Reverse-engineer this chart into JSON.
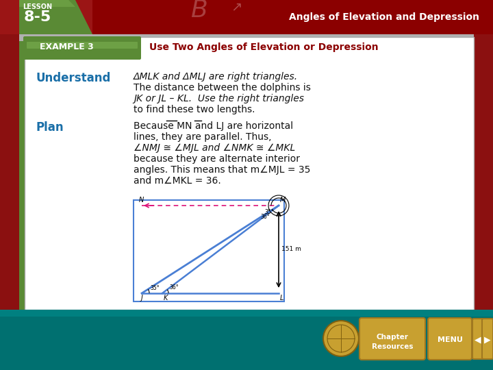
{
  "bg_color": "#c8c8c8",
  "header_bg": "#8B0000",
  "header_text": "Angles of Elevation and Depression",
  "lesson_label": "LESSON",
  "lesson_number": "8-5",
  "example_label": "EXAMPLE 3",
  "example_title": "Use Two Angles of Elevation or Depression",
  "example_title_color": "#8B0000",
  "example_banner_color": "#5a8a35",
  "understand_label": "Understand",
  "understand_label_color": "#1a6fa8",
  "understand_lines": [
    "ΔMLK and ΔMLJ are right triangles.",
    "The distance between the dolphins is",
    "JK or JL – KL.  Use the right triangles",
    "to find these two lengths."
  ],
  "plan_label": "Plan",
  "plan_label_color": "#1a6fa8",
  "plan_lines": [
    "Because MN and LJ are horizontal",
    "lines, they are parallel. Thus,",
    "∠NMJ ≅ ∠MJL and ∠NMK ≅ ∠MKL",
    "because they are alternate interior",
    "angles. This means that m∠MJL = 35",
    "and m∠MKL = 36."
  ],
  "content_bg": "#ffffff",
  "content_border": "#aaaaaa",
  "diagram_line_color": "#4a7fd4",
  "dashed_line_color": "#dd1177",
  "teal_bar": "#007070",
  "btn_color": "#c8a030",
  "btn_border": "#a07820"
}
